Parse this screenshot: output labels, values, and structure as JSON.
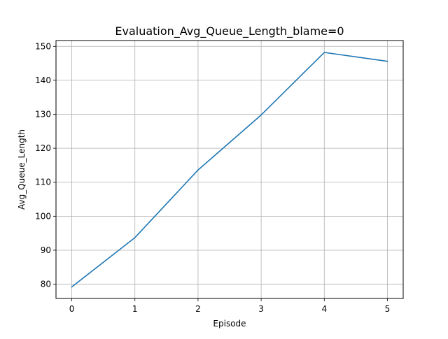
{
  "chart_data": {
    "type": "line",
    "title": "Evaluation_Avg_Queue_Length_blame=0",
    "xlabel": "Episode",
    "ylabel": "Avg_Queue_Length",
    "x": [
      0,
      1,
      2,
      3,
      4,
      5
    ],
    "series": [
      {
        "values": [
          79.2,
          93.7,
          113.6,
          129.8,
          148.2,
          145.6
        ],
        "color": "#1f77b4"
      }
    ],
    "xlim": [
      -0.25,
      5.25
    ],
    "ylim": [
      75.8,
      151.7
    ],
    "xticks": [
      0,
      1,
      2,
      3,
      4,
      5
    ],
    "yticks": [
      80,
      90,
      100,
      110,
      120,
      130,
      140,
      150
    ],
    "grid": true,
    "grid_color": "#b0b0b0",
    "legend": "none"
  }
}
